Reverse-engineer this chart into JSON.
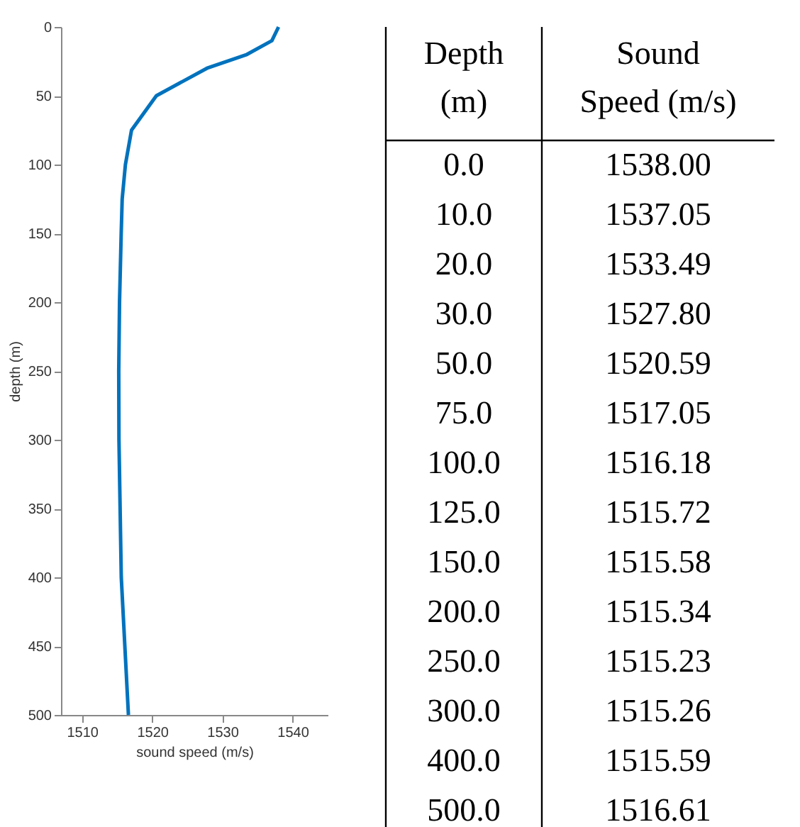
{
  "chart_data": {
    "type": "line",
    "xlabel": "sound speed (m/s)",
    "ylabel": "depth (m)",
    "series": [
      {
        "color": "#0072bd",
        "x": [
          1538.0,
          1537.05,
          1533.49,
          1527.8,
          1520.59,
          1517.05,
          1516.18,
          1515.72,
          1515.58,
          1515.34,
          1515.23,
          1515.26,
          1515.59,
          1516.61
        ],
        "values": [
          0,
          10,
          20,
          30,
          50,
          75,
          100,
          125,
          150,
          200,
          250,
          300,
          400,
          500
        ]
      }
    ],
    "xlim": [
      1507,
      1545
    ],
    "xticks": [
      1510,
      1520,
      1530,
      1540
    ],
    "ylim": [
      500,
      0
    ],
    "yticks": [
      0,
      50,
      100,
      150,
      200,
      250,
      300,
      350,
      400,
      450,
      500
    ],
    "grid": false,
    "line_style": "solid",
    "marker": "none",
    "annotations": [
      "Depth (m)",
      "Sound Speed (m/s)",
      "0.0",
      "1538.00",
      "10.0",
      "1537.05",
      "20.0",
      "1533.49",
      "30.0",
      "1527.80",
      "50.0",
      "1520.59",
      "75.0",
      "1517.05",
      "100.0",
      "1516.18",
      "125.0",
      "1515.72",
      "150.0",
      "1515.58",
      "200.0",
      "1515.34",
      "250.0",
      "1515.23",
      "300.0",
      "1515.26",
      "400.0",
      "1515.59",
      "500.0",
      "1516.61"
    ]
  }
}
